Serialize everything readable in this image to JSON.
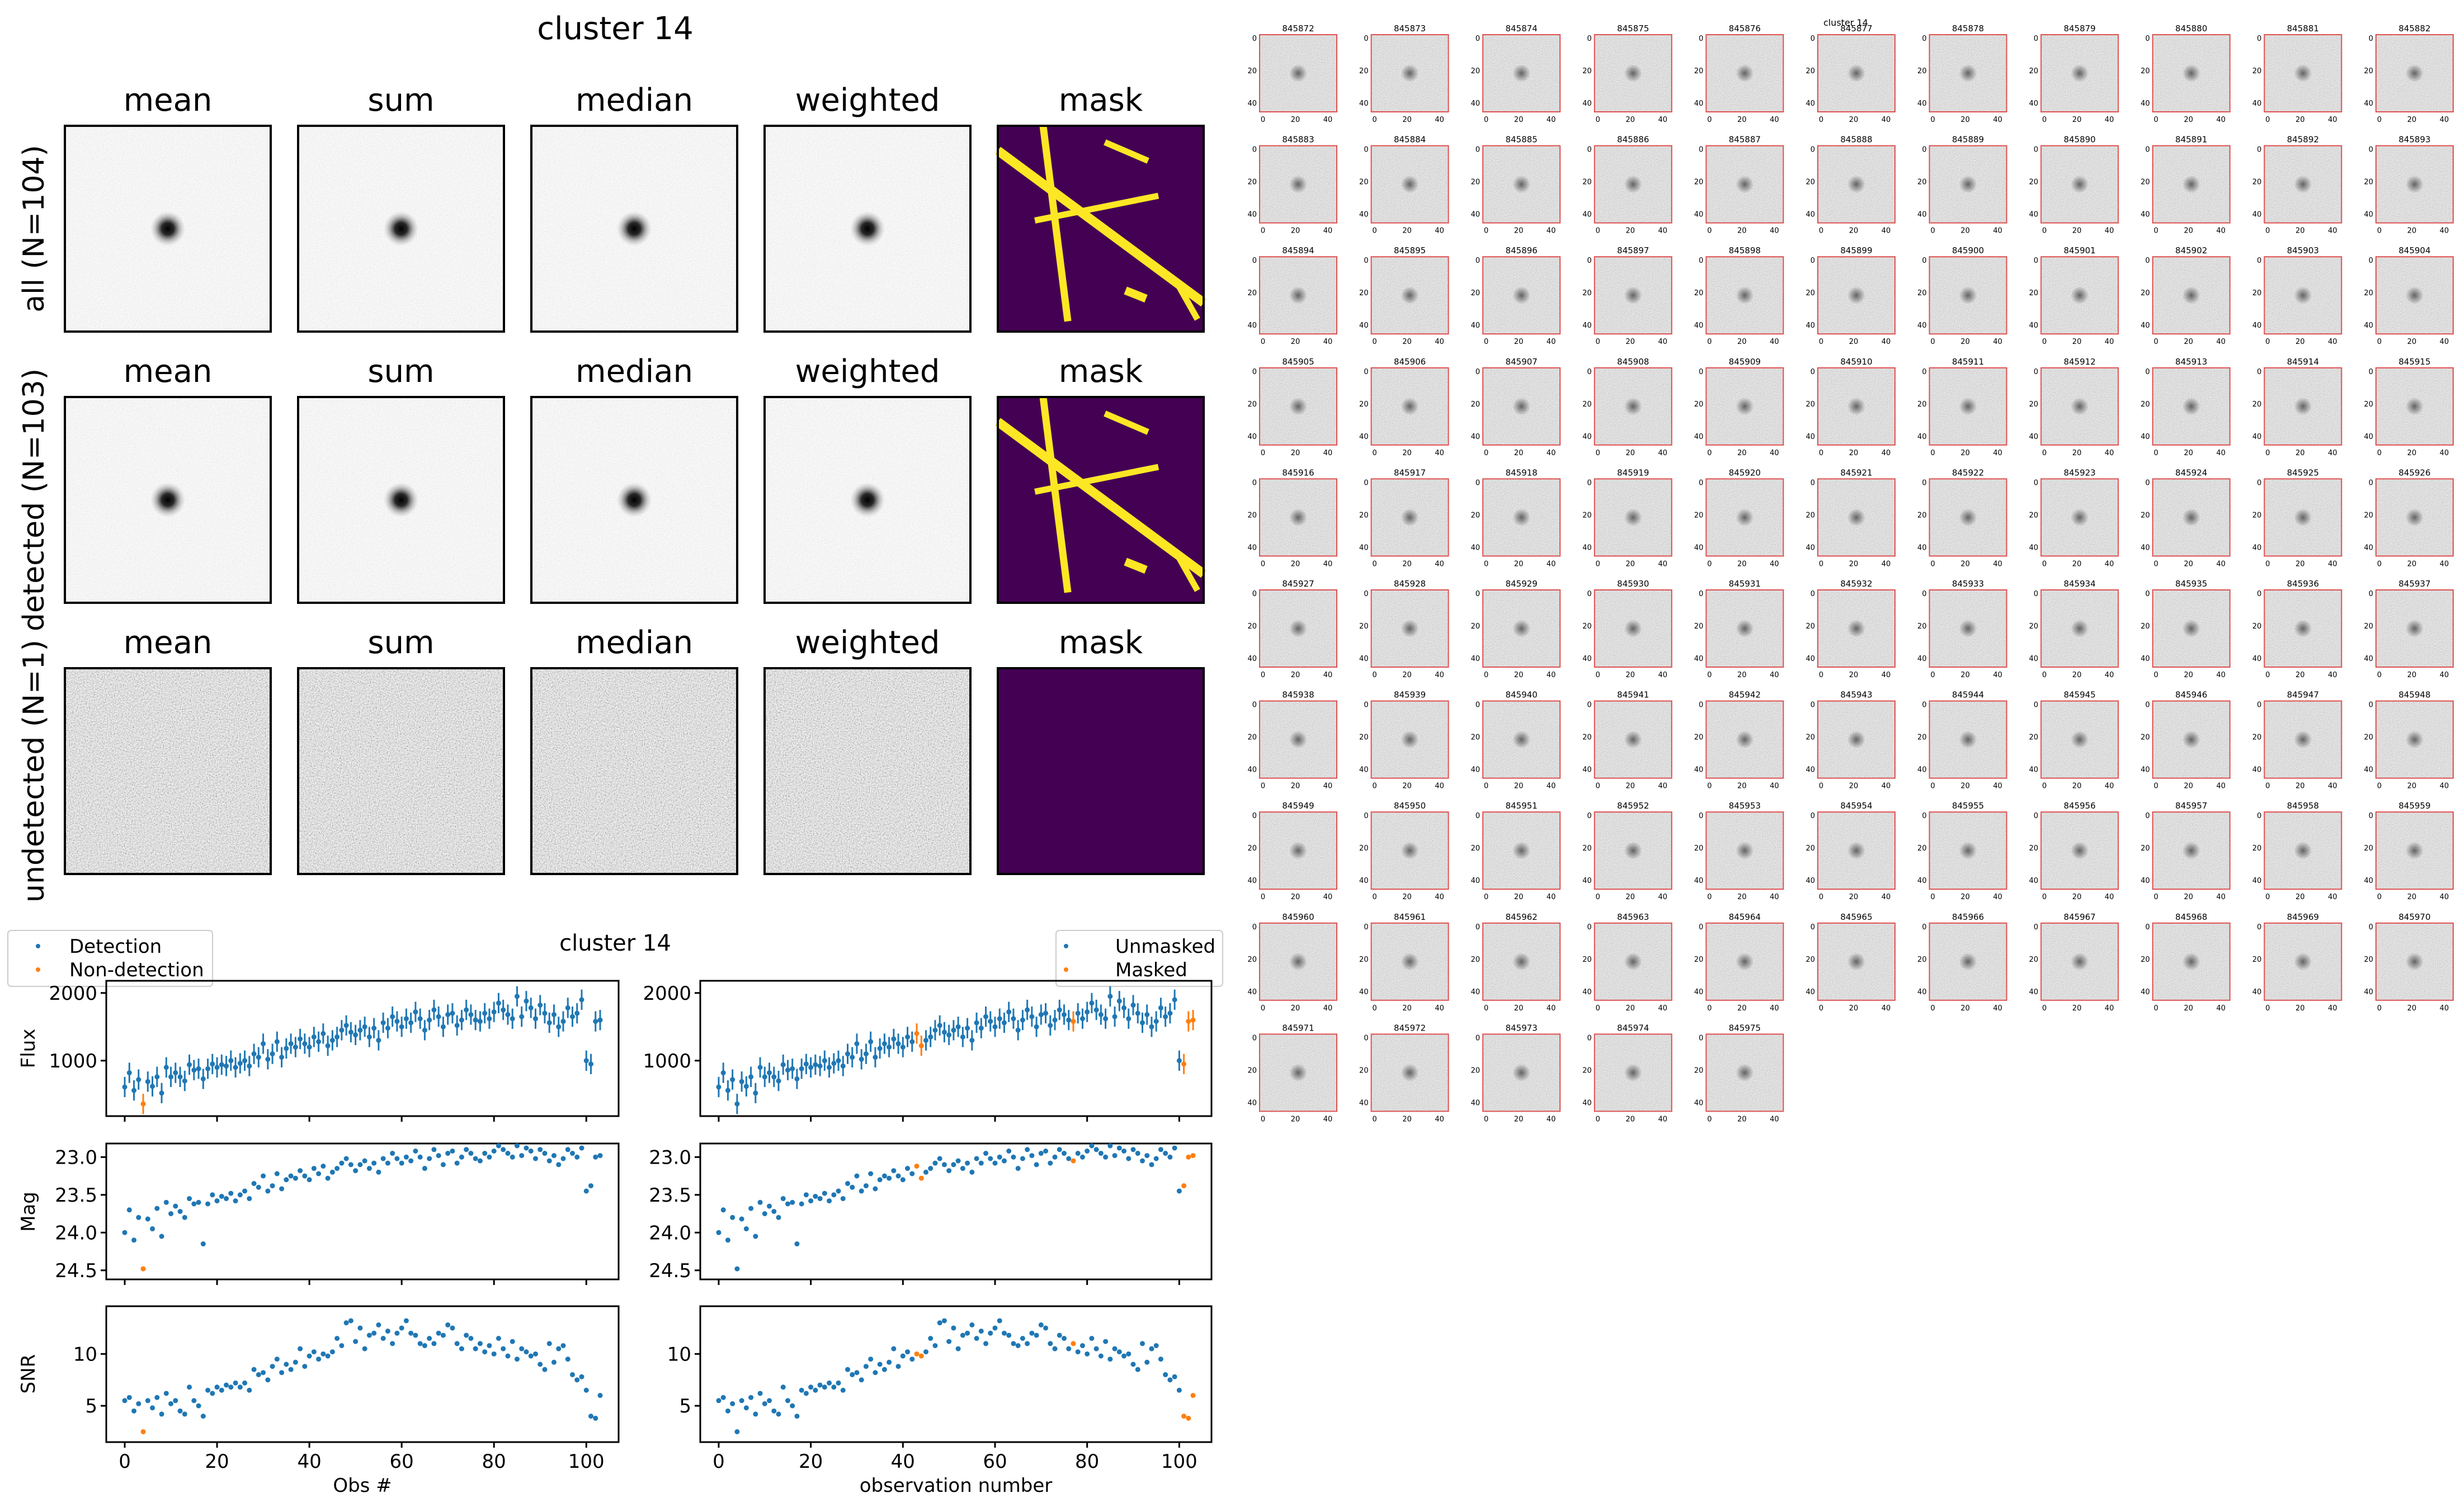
{
  "stack_figure": {
    "title": "cluster 14",
    "column_titles": [
      "mean",
      "sum",
      "median",
      "weighted",
      "mask"
    ],
    "row_labels": [
      "all (N=104)",
      "detected (N=103)",
      "undetected (N=1)"
    ],
    "panel_kind": [
      "psf",
      "psf",
      "noise"
    ],
    "mask_has_streaks": [
      true,
      true,
      false
    ],
    "mask_colors": {
      "background": "#440154",
      "streak": "#fde725"
    }
  },
  "lightcurve_figure": {
    "title": "cluster 14",
    "legend_left": [
      {
        "label": "Detection",
        "color": "#1f77b4"
      },
      {
        "label": "Non-detection",
        "color": "#ff7f0e"
      }
    ],
    "legend_right": [
      {
        "label": "Unmasked",
        "color": "#1f77b4"
      },
      {
        "label": "Masked",
        "color": "#ff7f0e"
      }
    ],
    "xlabel_left": "Obs #",
    "xlabel_right": "observation number",
    "ylabels": [
      "Flux",
      "Mag",
      "SNR"
    ]
  },
  "chart_data": [
    {
      "type": "scatter",
      "panel": "flux",
      "ylabel": "Flux",
      "xlim": [
        -4,
        107
      ],
      "ylim": [
        180,
        2180
      ],
      "yticks": [
        1000,
        2000
      ],
      "xticks": [
        0,
        20,
        40,
        60,
        80,
        100
      ],
      "errorbar": 150,
      "x": [
        0,
        1,
        2,
        3,
        4,
        5,
        6,
        7,
        8,
        9,
        10,
        11,
        12,
        13,
        14,
        15,
        16,
        17,
        18,
        19,
        20,
        21,
        22,
        23,
        24,
        25,
        26,
        27,
        28,
        29,
        30,
        31,
        32,
        33,
        34,
        35,
        36,
        37,
        38,
        39,
        40,
        41,
        42,
        43,
        44,
        45,
        46,
        47,
        48,
        49,
        50,
        51,
        52,
        53,
        54,
        55,
        56,
        57,
        58,
        59,
        60,
        61,
        62,
        63,
        64,
        65,
        66,
        67,
        68,
        69,
        70,
        71,
        72,
        73,
        74,
        75,
        76,
        77,
        78,
        79,
        80,
        81,
        82,
        83,
        84,
        85,
        86,
        87,
        88,
        89,
        90,
        91,
        92,
        93,
        94,
        95,
        96,
        97,
        98,
        99,
        100,
        101,
        102,
        103
      ],
      "y": [
        610,
        820,
        560,
        720,
        360,
        690,
        620,
        760,
        520,
        900,
        760,
        820,
        760,
        700,
        940,
        860,
        880,
        730,
        880,
        950,
        900,
        940,
        920,
        1000,
        900,
        960,
        1000,
        920,
        1100,
        1050,
        1250,
        1020,
        1100,
        1280,
        1050,
        1180,
        1250,
        1200,
        1320,
        1250,
        1200,
        1350,
        1280,
        1400,
        1220,
        1300,
        1350,
        1450,
        1520,
        1420,
        1380,
        1450,
        1500,
        1350,
        1480,
        1300,
        1560,
        1480,
        1650,
        1580,
        1500,
        1620,
        1560,
        1720,
        1620,
        1450,
        1600,
        1750,
        1650,
        1500,
        1680,
        1700,
        1520,
        1600,
        1750,
        1680,
        1600,
        1580,
        1700,
        1620,
        1720,
        1850,
        1750,
        1680,
        1620,
        1950,
        1650,
        1880,
        1780,
        1620,
        1820,
        1700,
        1560,
        1680,
        1500,
        1580,
        1780,
        1650,
        1700,
        1900,
        1000,
        950,
        1580,
        1600
      ],
      "masked_in_left": [
        4
      ],
      "masked_in_right": [
        43,
        44,
        77,
        101,
        102,
        103
      ]
    },
    {
      "type": "scatter",
      "panel": "mag",
      "ylabel": "Mag",
      "xlim": [
        -4,
        107
      ],
      "ylim": [
        24.62,
        22.82
      ],
      "yticks": [
        23.0,
        23.5,
        24.0,
        24.5
      ],
      "ytick_labels": [
        "23.0",
        "23.5",
        "24.0",
        "24.5"
      ],
      "xticks": [
        0,
        20,
        40,
        60,
        80,
        100
      ],
      "x": [
        0,
        1,
        2,
        3,
        4,
        5,
        6,
        7,
        8,
        9,
        10,
        11,
        12,
        13,
        14,
        15,
        16,
        17,
        18,
        19,
        20,
        21,
        22,
        23,
        24,
        25,
        26,
        27,
        28,
        29,
        30,
        31,
        32,
        33,
        34,
        35,
        36,
        37,
        38,
        39,
        40,
        41,
        42,
        43,
        44,
        45,
        46,
        47,
        48,
        49,
        50,
        51,
        52,
        53,
        54,
        55,
        56,
        57,
        58,
        59,
        60,
        61,
        62,
        63,
        64,
        65,
        66,
        67,
        68,
        69,
        70,
        71,
        72,
        73,
        74,
        75,
        76,
        77,
        78,
        79,
        80,
        81,
        82,
        83,
        84,
        85,
        86,
        87,
        88,
        89,
        90,
        91,
        92,
        93,
        94,
        95,
        96,
        97,
        98,
        99,
        100,
        101,
        102,
        103
      ],
      "y": [
        24.0,
        23.7,
        24.1,
        23.8,
        24.48,
        23.82,
        23.95,
        23.68,
        24.05,
        23.6,
        23.75,
        23.65,
        23.72,
        23.8,
        23.55,
        23.62,
        23.6,
        24.15,
        23.62,
        23.5,
        23.58,
        23.52,
        23.55,
        23.48,
        23.58,
        23.5,
        23.45,
        23.55,
        23.35,
        23.4,
        23.25,
        23.45,
        23.38,
        23.22,
        23.42,
        23.3,
        23.25,
        23.28,
        23.18,
        23.25,
        23.3,
        23.15,
        23.22,
        23.12,
        23.28,
        23.2,
        23.15,
        23.08,
        23.02,
        23.1,
        23.18,
        23.1,
        23.05,
        23.15,
        23.08,
        23.2,
        23.02,
        23.08,
        22.95,
        23.02,
        23.08,
        23.0,
        23.05,
        22.92,
        23.0,
        23.15,
        23.02,
        22.9,
        22.98,
        23.1,
        22.95,
        22.92,
        23.08,
        23.0,
        22.9,
        22.95,
        23.02,
        23.05,
        22.95,
        23.0,
        22.92,
        22.85,
        22.9,
        22.95,
        23.0,
        22.85,
        22.98,
        22.88,
        22.92,
        23.02,
        22.9,
        22.95,
        23.05,
        22.98,
        23.1,
        23.02,
        22.9,
        22.95,
        23.0,
        22.88,
        23.45,
        23.38,
        23.0,
        22.98
      ],
      "masked_in_left": [
        4
      ],
      "masked_in_right": [
        43,
        44,
        77,
        101,
        102,
        103
      ]
    },
    {
      "type": "scatter",
      "panel": "snr",
      "ylabel": "SNR",
      "xlim": [
        -4,
        107
      ],
      "ylim": [
        1.5,
        14.6
      ],
      "yticks": [
        5,
        10
      ],
      "xticks": [
        0,
        20,
        40,
        60,
        80,
        100
      ],
      "xlabel": "Obs #",
      "x": [
        0,
        1,
        2,
        3,
        4,
        5,
        6,
        7,
        8,
        9,
        10,
        11,
        12,
        13,
        14,
        15,
        16,
        17,
        18,
        19,
        20,
        21,
        22,
        23,
        24,
        25,
        26,
        27,
        28,
        29,
        30,
        31,
        32,
        33,
        34,
        35,
        36,
        37,
        38,
        39,
        40,
        41,
        42,
        43,
        44,
        45,
        46,
        47,
        48,
        49,
        50,
        51,
        52,
        53,
        54,
        55,
        56,
        57,
        58,
        59,
        60,
        61,
        62,
        63,
        64,
        65,
        66,
        67,
        68,
        69,
        70,
        71,
        72,
        73,
        74,
        75,
        76,
        77,
        78,
        79,
        80,
        81,
        82,
        83,
        84,
        85,
        86,
        87,
        88,
        89,
        90,
        91,
        92,
        93,
        94,
        95,
        96,
        97,
        98,
        99,
        100,
        101,
        102,
        103
      ],
      "y": [
        5.5,
        5.8,
        4.5,
        5.2,
        2.5,
        5.5,
        4.8,
        5.8,
        4.2,
        6.2,
        5.2,
        5.5,
        4.5,
        4.2,
        6.8,
        5.5,
        5.0,
        4.0,
        6.5,
        6.2,
        6.8,
        6.5,
        7.0,
        6.8,
        7.2,
        6.8,
        7.2,
        6.5,
        8.5,
        8.0,
        8.2,
        7.5,
        8.8,
        9.5,
        8.2,
        9.0,
        8.5,
        9.2,
        10.5,
        8.8,
        9.8,
        10.2,
        9.5,
        10.0,
        9.8,
        10.2,
        11.5,
        10.8,
        13.0,
        13.2,
        11.2,
        12.5,
        10.5,
        11.8,
        12.0,
        12.8,
        11.5,
        12.2,
        11.0,
        12.0,
        12.5,
        13.2,
        12.0,
        11.8,
        11.0,
        10.8,
        11.5,
        11.0,
        12.0,
        11.8,
        12.8,
        12.5,
        11.0,
        10.5,
        11.8,
        11.5,
        10.5,
        11.0,
        10.2,
        10.8,
        10.0,
        11.5,
        10.5,
        9.8,
        11.2,
        9.5,
        10.5,
        10.2,
        9.8,
        10.0,
        9.0,
        8.5,
        11.0,
        9.2,
        10.5,
        10.8,
        9.5,
        8.0,
        7.5,
        7.8,
        6.5,
        4.0,
        3.8,
        6.0
      ],
      "masked_in_left": [
        4
      ],
      "masked_in_right": [
        43,
        44,
        77,
        101,
        102,
        103
      ]
    }
  ],
  "thumbnail_grid": {
    "title": "cluster 14",
    "ytick_labels": [
      "0",
      "20",
      "40"
    ],
    "xtick_labels": [
      "0",
      "20",
      "40"
    ],
    "ids": [
      "845872",
      "845873",
      "845874",
      "845875",
      "845876",
      "845877",
      "845878",
      "845879",
      "845880",
      "845881",
      "845882",
      "845883",
      "845884",
      "845885",
      "845886",
      "845887",
      "845888",
      "845889",
      "845890",
      "845891",
      "845892",
      "845893",
      "845894",
      "845895",
      "845896",
      "845897",
      "845898",
      "845899",
      "845900",
      "845901",
      "845902",
      "845903",
      "845904",
      "845905",
      "845906",
      "845907",
      "845908",
      "845909",
      "845910",
      "845911",
      "845912",
      "845913",
      "845914",
      "845915",
      "845916",
      "845917",
      "845918",
      "845919",
      "845920",
      "845921",
      "845922",
      "845923",
      "845924",
      "845925",
      "845926",
      "845927",
      "845928",
      "845929",
      "845930",
      "845931",
      "845932",
      "845933",
      "845934",
      "845935",
      "845936",
      "845937",
      "845938",
      "845939",
      "845940",
      "845941",
      "845942",
      "845943",
      "845944",
      "845945",
      "845946",
      "845947",
      "845948",
      "845949",
      "845950",
      "845951",
      "845952",
      "845953",
      "845954",
      "845955",
      "845956",
      "845957",
      "845958",
      "845959",
      "845960",
      "845961",
      "845962",
      "845963",
      "845964",
      "845965",
      "845966",
      "845967",
      "845968",
      "845969",
      "845970",
      "845971",
      "845972",
      "845973",
      "845974",
      "845975"
    ],
    "frame_color": "#e05050"
  }
}
